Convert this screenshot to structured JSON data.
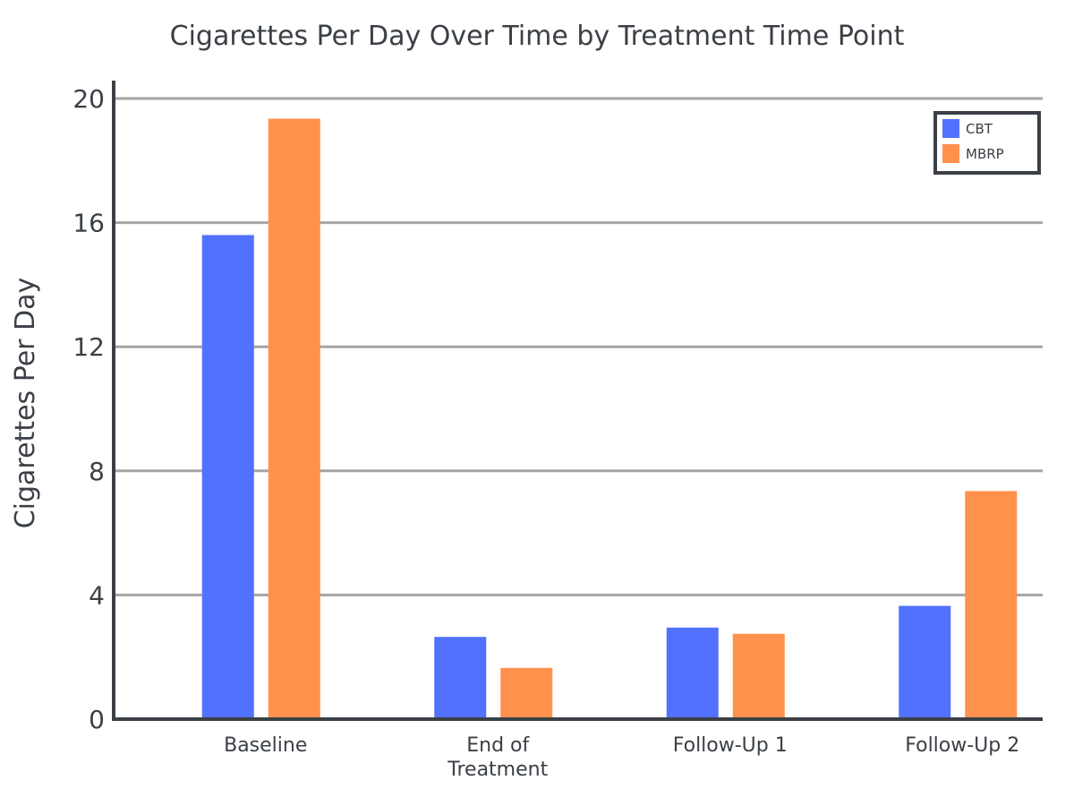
{
  "chart_data": {
    "type": "bar",
    "title": "Cigarettes Per Day Over Time by Treatment Time Point",
    "xlabel": "",
    "ylabel": "Cigarettes Per Day",
    "categories": [
      "Baseline",
      "End of Treatment",
      "Follow-Up 1",
      "Follow-Up 2"
    ],
    "category_lines": [
      [
        "Baseline"
      ],
      [
        "End of",
        "Treatment"
      ],
      [
        "Follow-Up 1"
      ],
      [
        "Follow-Up 2"
      ]
    ],
    "series": [
      {
        "name": "CBT",
        "color": "#5271ff",
        "values": [
          15.6,
          2.65,
          2.95,
          3.65
        ]
      },
      {
        "name": "MBRP",
        "color": "#ff914d",
        "values": [
          19.35,
          1.65,
          2.75,
          7.35
        ]
      }
    ],
    "ylim": [
      0,
      20
    ],
    "yticks": [
      0,
      4,
      8,
      12,
      16,
      20
    ],
    "grid": true,
    "legend_position": "top-right"
  }
}
